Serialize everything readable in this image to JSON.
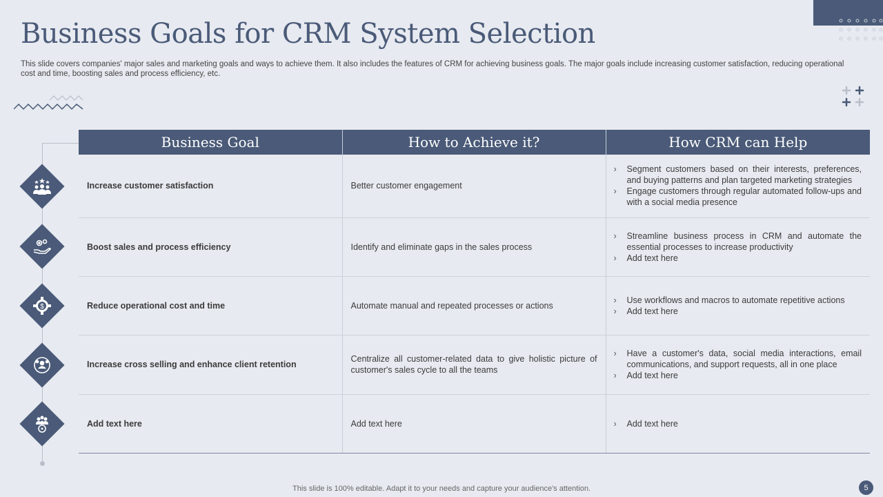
{
  "title": "Business Goals for CRM System Selection",
  "subtitle": "This slide covers companies' major sales and marketing goals and ways to achieve them. It also includes the features of CRM for achieving business goals. The major goals include increasing customer satisfaction, reducing operational cost and time, boosting sales and process efficiency, etc.",
  "table": {
    "headers": [
      "Business Goal",
      "How to Achieve it?",
      "How CRM can Help"
    ],
    "rows": [
      {
        "icon": "customer-rating-icon",
        "goal": "Increase customer satisfaction",
        "achieve": "Better customer engagement",
        "help": [
          "Segment customers based on their interests, preferences, and buying patterns and plan targeted marketing strategies",
          "Engage customers through regular automated follow-ups and with a social media presence"
        ]
      },
      {
        "icon": "gears-hand-icon",
        "goal": "Boost sales and process efficiency",
        "achieve": "Identify and eliminate gaps in the sales process",
        "help": [
          "Streamline business process in CRM and automate the essential processes to increase productivity",
          "Add text here"
        ]
      },
      {
        "icon": "dollar-gear-icon",
        "goal": "Reduce operational cost and time",
        "achieve": "Automate manual and repeated processes or actions",
        "help": [
          "Use workflows and macros to automate repetitive actions",
          "Add text here"
        ]
      },
      {
        "icon": "client-retention-icon",
        "goal": "Increase cross selling and enhance client retention",
        "achieve": "Centralize all customer-related data to give holistic picture of customer's sales cycle to all the teams",
        "help": [
          "Have a customer's data, social media interactions, email communications, and support requests, all in one place",
          "Add text here"
        ]
      },
      {
        "icon": "team-target-icon",
        "goal": "Add text here",
        "achieve": "Add text here",
        "help": [
          "Add text here"
        ]
      }
    ]
  },
  "footer": "This slide is 100% editable. Adapt it to your needs and capture your audience's attention.",
  "page_number": "5",
  "colors": {
    "accent": "#4a5a78",
    "background": "#e7eaf0",
    "line": "#b9bfca"
  }
}
